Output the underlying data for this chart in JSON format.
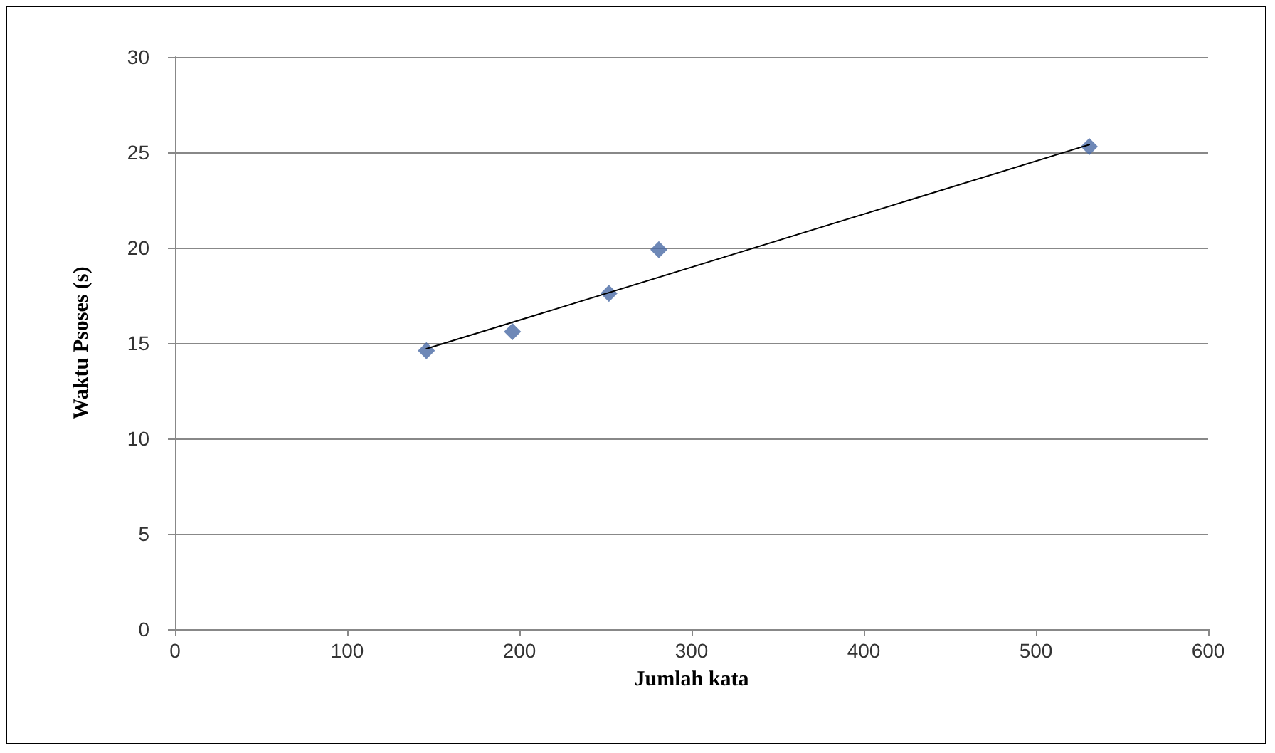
{
  "chart_data": {
    "type": "scatter",
    "xlabel": "Jumlah kata",
    "ylabel": "Waktu Psoses (s)",
    "xlim": [
      0,
      600
    ],
    "xticks": [
      0,
      100,
      200,
      300,
      400,
      500,
      600
    ],
    "ylim": [
      0,
      30
    ],
    "yticks": [
      0,
      5,
      10,
      15,
      20,
      25,
      30
    ],
    "grid": "y",
    "marker": "diamond",
    "series": [
      {
        "color": "#4a6aa5",
        "x": [
          146,
          196,
          252,
          281,
          531
        ],
        "values": [
          14.6,
          15.6,
          17.6,
          19.9,
          25.3
        ]
      },
      {
        "type": "line",
        "color": "#000000",
        "marker": "none",
        "x": [
          146,
          531
        ],
        "values": [
          14.7,
          25.4
        ]
      }
    ]
  }
}
